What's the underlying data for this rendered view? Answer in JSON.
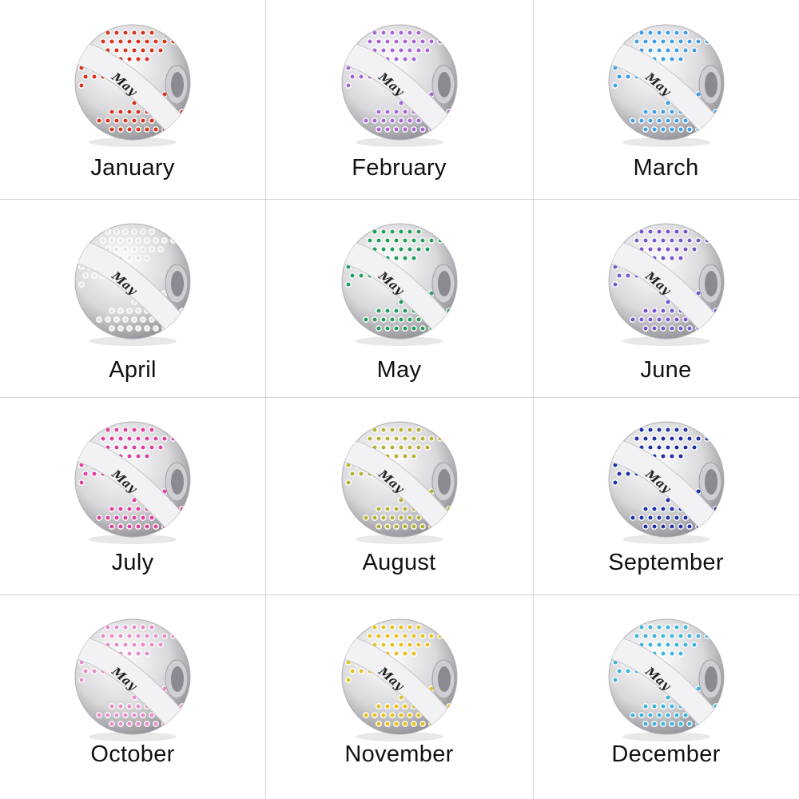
{
  "engraving": "May",
  "months": [
    {
      "label": "January",
      "stone_color": "#d8321f"
    },
    {
      "label": "February",
      "stone_color": "#a864d6"
    },
    {
      "label": "March",
      "stone_color": "#3c9ee6"
    },
    {
      "label": "April",
      "stone_color": "#e6e6ea"
    },
    {
      "label": "May",
      "stone_color": "#1f9e5e"
    },
    {
      "label": "June",
      "stone_color": "#7456cc"
    },
    {
      "label": "July",
      "stone_color": "#e23ea0"
    },
    {
      "label": "August",
      "stone_color": "#b4b232"
    },
    {
      "label": "September",
      "stone_color": "#1e2fa6"
    },
    {
      "label": "October",
      "stone_color": "#e88cc8"
    },
    {
      "label": "November",
      "stone_color": "#e6c21e"
    },
    {
      "label": "December",
      "stone_color": "#3cb4dc"
    }
  ]
}
